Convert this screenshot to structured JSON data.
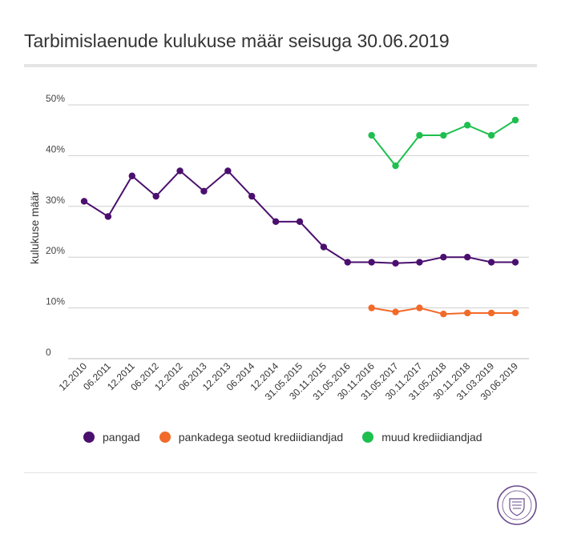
{
  "chart_data": {
    "type": "line",
    "title": "Tarbimislaenude kulukuse määr seisuga 30.06.2019",
    "ylabel": "kulukuse määr",
    "xlabel": "",
    "ylim": [
      0,
      50
    ],
    "yticks": [
      0,
      10,
      20,
      30,
      40,
      50
    ],
    "ytick_labels": [
      "0",
      "10%",
      "20%",
      "30%",
      "40%",
      "50%"
    ],
    "grid": true,
    "legend_position": "bottom",
    "categories": [
      "12.2010",
      "06.2011",
      "12.2011",
      "06.2012",
      "12.2012",
      "06.2013",
      "12.2013",
      "06.2014",
      "12.2014",
      "31.05.2015",
      "30.11.2015",
      "31.05.2016",
      "30.11.2016",
      "31.05.2017",
      "30.11.2017",
      "31.05.2018",
      "30.11.2018",
      "31.03.2019",
      "30.06.2019"
    ],
    "series": [
      {
        "name": "pangad",
        "color": "#4b0f6e",
        "values": [
          31,
          28,
          36,
          32,
          37,
          33,
          37,
          32,
          27,
          27,
          22,
          19,
          19,
          18.8,
          19,
          20,
          20,
          19,
          19
        ]
      },
      {
        "name": "pankadega seotud krediidiandjad",
        "color": "#f26a2a",
        "values": [
          null,
          null,
          null,
          null,
          null,
          null,
          null,
          null,
          null,
          null,
          null,
          null,
          10,
          9.2,
          10,
          8.8,
          9,
          9,
          9
        ]
      },
      {
        "name": "muud krediidiandjad",
        "color": "#1fbf4f",
        "values": [
          null,
          null,
          null,
          null,
          null,
          null,
          null,
          null,
          null,
          null,
          null,
          null,
          44,
          38,
          44,
          44,
          46,
          44,
          47
        ]
      }
    ]
  },
  "seal": {
    "icon": "institution-seal-icon",
    "color": "#6a4b8c"
  }
}
